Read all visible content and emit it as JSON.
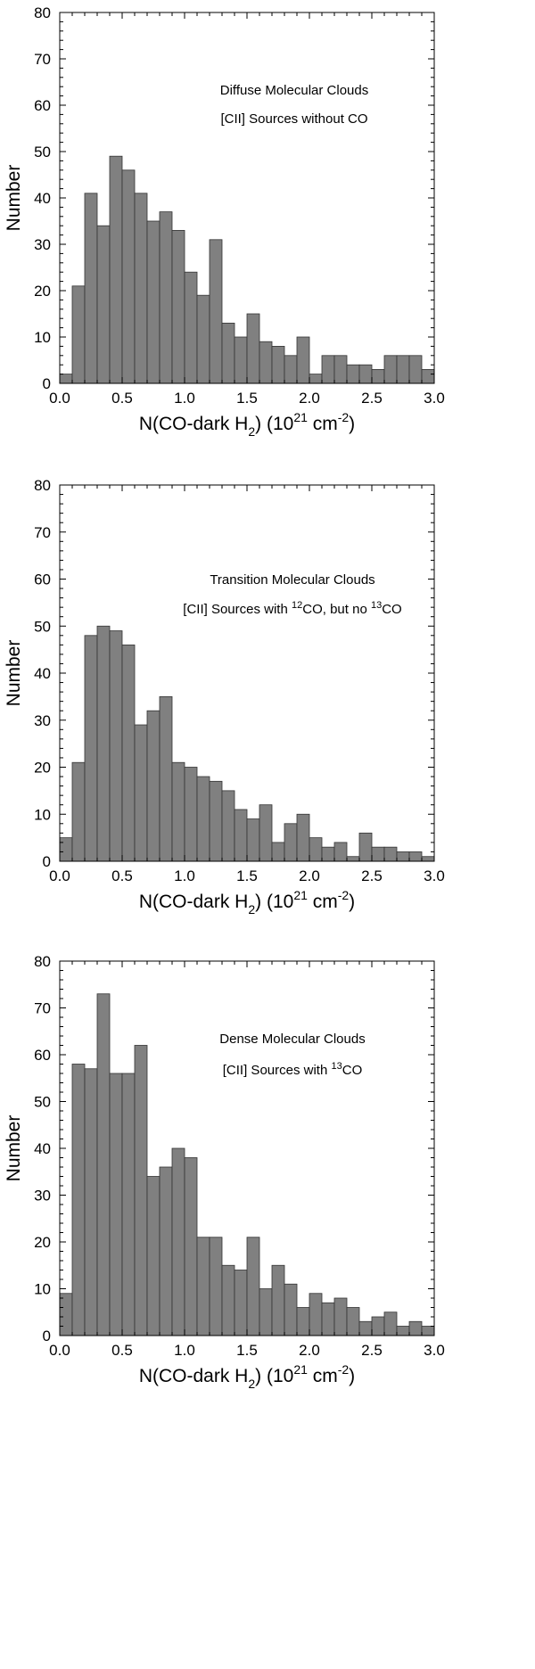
{
  "chart_data": [
    {
      "type": "bar",
      "annotation_lines": [
        "Diffuse Molecular Clouds",
        "[CII] Sources without CO"
      ],
      "xlabel": {
        "main": "N(CO-dark H",
        "sub": "2",
        "mid": ") (10",
        "sup": "21",
        "unit": " cm",
        "unit_sup": "-2",
        "end": ")"
      },
      "ylabel": "Number",
      "xlim": [
        0,
        3.0
      ],
      "ylim": [
        0,
        80
      ],
      "xticks": [
        "0.0",
        "0.5",
        "1.0",
        "1.5",
        "2.0",
        "2.5",
        "3.0"
      ],
      "yticks": [
        "0",
        "10",
        "20",
        "30",
        "40",
        "50",
        "60",
        "70",
        "80"
      ],
      "bin_width": 0.1,
      "bin_starts": [
        0.0,
        0.1,
        0.2,
        0.3,
        0.4,
        0.5,
        0.6,
        0.7,
        0.8,
        0.9,
        1.0,
        1.1,
        1.2,
        1.3,
        1.4,
        1.5,
        1.6,
        1.7,
        1.8,
        1.9,
        2.0,
        2.1,
        2.2,
        2.3,
        2.4,
        2.5,
        2.6,
        2.7,
        2.8,
        2.9
      ],
      "values": [
        2,
        21,
        41,
        34,
        49,
        46,
        41,
        35,
        37,
        33,
        24,
        19,
        31,
        13,
        10,
        15,
        9,
        8,
        6,
        10,
        2,
        6,
        6,
        4,
        4,
        3,
        6,
        6,
        6,
        3
      ]
    },
    {
      "type": "bar",
      "annotation_lines": [
        {
          "parts": [
            "Transition Molecular Clouds"
          ]
        },
        {
          "parts": [
            "[CII] Sources with ",
            {
              "sup": "12"
            },
            "CO, but no ",
            {
              "sup": "13"
            },
            "CO"
          ]
        }
      ],
      "xlabel": {
        "main": "N(CO-dark H",
        "sub": "2",
        "mid": ") (10",
        "sup": "21",
        "unit": " cm",
        "unit_sup": "-2",
        "end": ")"
      },
      "ylabel": "Number",
      "xlim": [
        0,
        3.0
      ],
      "ylim": [
        0,
        80
      ],
      "xticks": [
        "0.0",
        "0.5",
        "1.0",
        "1.5",
        "2.0",
        "2.5",
        "3.0"
      ],
      "yticks": [
        "0",
        "10",
        "20",
        "30",
        "40",
        "50",
        "60",
        "70",
        "80"
      ],
      "bin_width": 0.1,
      "bin_starts": [
        0.0,
        0.1,
        0.2,
        0.3,
        0.4,
        0.5,
        0.6,
        0.7,
        0.8,
        0.9,
        1.0,
        1.1,
        1.2,
        1.3,
        1.4,
        1.5,
        1.6,
        1.7,
        1.8,
        1.9,
        2.0,
        2.1,
        2.2,
        2.3,
        2.4,
        2.5,
        2.6,
        2.7,
        2.8,
        2.9
      ],
      "values": [
        5,
        21,
        48,
        50,
        49,
        46,
        29,
        32,
        35,
        21,
        20,
        18,
        17,
        15,
        11,
        9,
        12,
        4,
        8,
        10,
        5,
        3,
        4,
        1,
        6,
        3,
        3,
        2,
        2,
        1
      ]
    },
    {
      "type": "bar",
      "annotation_lines": [
        {
          "parts": [
            "Dense Molecular Clouds"
          ]
        },
        {
          "parts": [
            "[CII] Sources with ",
            {
              "sup": "13"
            },
            "CO"
          ]
        }
      ],
      "xlabel": {
        "main": "N(CO-dark H",
        "sub": "2",
        "mid": ") (10",
        "sup": "21",
        "unit": " cm",
        "unit_sup": "-2",
        "end": ")"
      },
      "ylabel": "Number",
      "xlim": [
        0,
        3.0
      ],
      "ylim": [
        0,
        80
      ],
      "xticks": [
        "0.0",
        "0.5",
        "1.0",
        "1.5",
        "2.0",
        "2.5",
        "3.0"
      ],
      "yticks": [
        "0",
        "10",
        "20",
        "30",
        "40",
        "50",
        "60",
        "70",
        "80"
      ],
      "bin_width": 0.1,
      "bin_starts": [
        0.0,
        0.1,
        0.2,
        0.3,
        0.4,
        0.5,
        0.6,
        0.7,
        0.8,
        0.9,
        1.0,
        1.1,
        1.2,
        1.3,
        1.4,
        1.5,
        1.6,
        1.7,
        1.8,
        1.9,
        2.0,
        2.1,
        2.2,
        2.3,
        2.4,
        2.5,
        2.6,
        2.7,
        2.8,
        2.9
      ],
      "values": [
        9,
        58,
        57,
        73,
        56,
        56,
        62,
        34,
        36,
        40,
        38,
        21,
        21,
        15,
        14,
        21,
        10,
        15,
        11,
        6,
        9,
        7,
        8,
        6,
        3,
        4,
        5,
        2,
        3,
        2
      ]
    }
  ],
  "colors": {
    "bar_fill": "#808080",
    "bar_edge": "#333333",
    "axis": "#000000"
  }
}
